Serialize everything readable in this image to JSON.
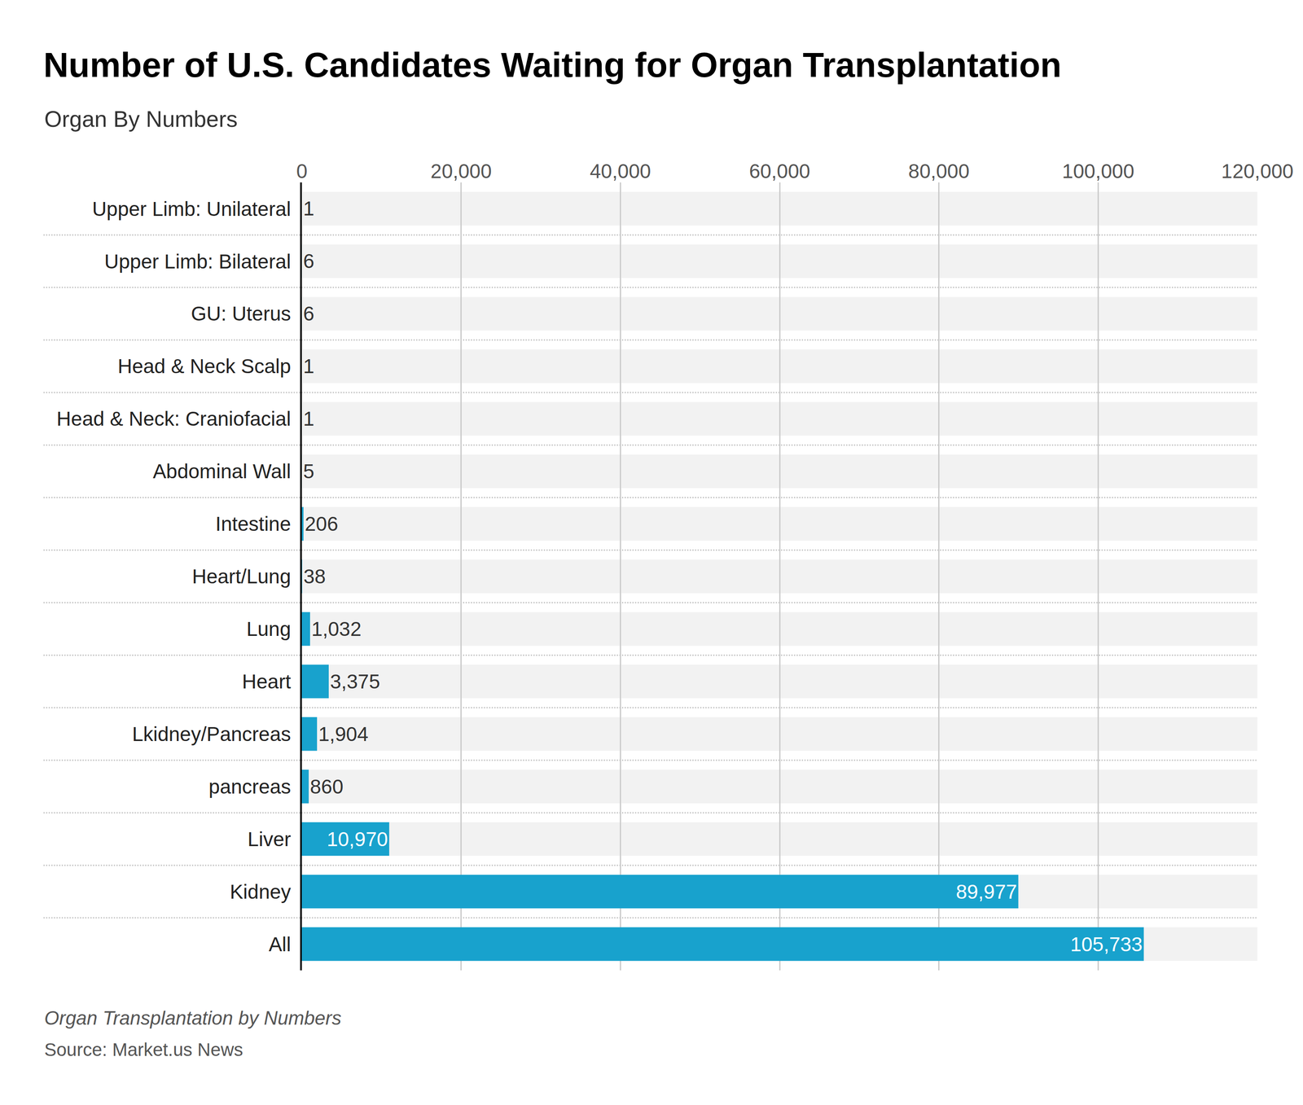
{
  "chart_data": {
    "type": "bar",
    "title": "Number of U.S. Candidates Waiting for Organ Transplantation",
    "subtitle": "Organ By Numbers",
    "caption": "Organ Transplantation by Numbers",
    "source": "Source: Market.us News",
    "orientation": "horizontal",
    "categories": [
      "Upper Limb: Unilateral",
      "Upper Limb: Bilateral",
      "GU: Uterus",
      "Head & Neck Scalp",
      "Head & Neck: Craniofacial",
      "Abdominal Wall",
      "Intestine",
      "Heart/Lung",
      "Lung",
      "Heart",
      "Lkidney/Pancreas",
      "pancreas",
      "Liver",
      "Kidney",
      "All"
    ],
    "values": [
      1,
      6,
      6,
      1,
      1,
      5,
      206,
      38,
      1032,
      3375,
      1904,
      860,
      10970,
      89977,
      105733
    ],
    "value_labels": [
      "1",
      "6",
      "6",
      "1",
      "1",
      "5",
      "206",
      "38",
      "1,032",
      "3,375",
      "1,904",
      "860",
      "10,970",
      "89,977",
      "105,733"
    ],
    "color": "#18a2cd",
    "data_labels": true,
    "xlim": [
      0,
      120000
    ],
    "xticks": [
      0,
      {
        "value": 20000,
        "label": "20,000"
      },
      {
        "value": 40000,
        "label": "40,000"
      },
      {
        "value": 60000,
        "label": "60,000"
      },
      {
        "value": 80000,
        "label": "80,000"
      },
      {
        "value": 100000,
        "label": "100,000"
      },
      {
        "value": 120000,
        "label": "120,000"
      }
    ],
    "grid": true
  }
}
